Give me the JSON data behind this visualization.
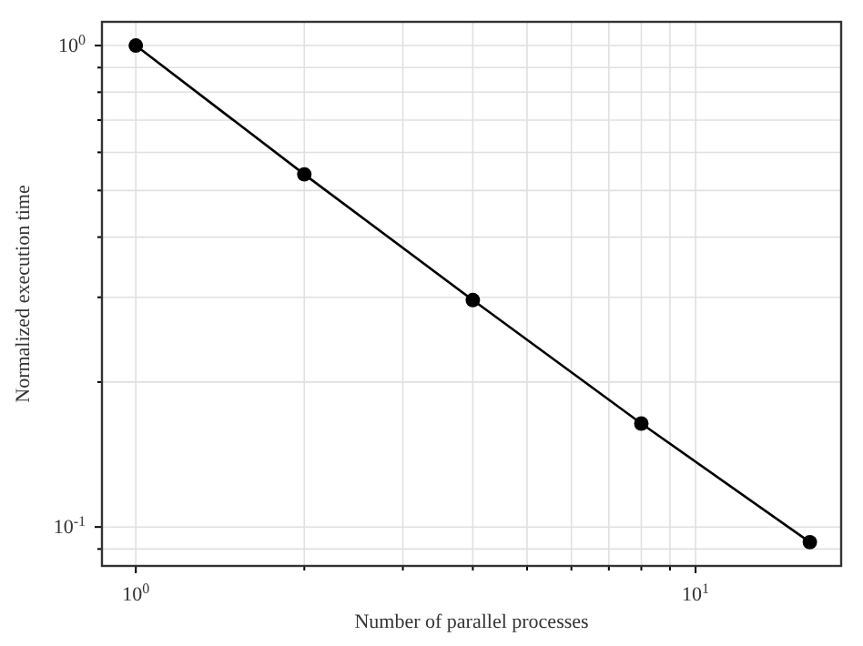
{
  "chart_data": {
    "type": "line",
    "xlabel": "Number of parallel processes",
    "ylabel": "Normalized execution time",
    "x": [
      1,
      2,
      4,
      8,
      16
    ],
    "series": [
      {
        "color": "#000000",
        "values": [
          1,
          0.54,
          0.296,
          0.164,
          0.093
        ]
      }
    ],
    "log": "xy",
    "xlim": [
      0.87,
      18.2
    ],
    "ylim": [
      0.083,
      1.12
    ],
    "xticks": [
      {
        "value": 1,
        "label": "10$^{0}$"
      },
      {
        "value": 2,
        "label": null
      },
      {
        "value": 3,
        "label": null
      },
      {
        "value": 4,
        "label": null
      },
      {
        "value": 5,
        "label": null
      },
      {
        "value": 6,
        "label": null
      },
      {
        "value": 7,
        "label": null
      },
      {
        "value": 8,
        "label": null
      },
      {
        "value": 9,
        "label": null
      },
      {
        "value": 10,
        "label": "10$^{1}$"
      }
    ],
    "yticks": [
      {
        "value": 0.09,
        "label": null
      },
      {
        "value": 0.1,
        "label": "10$^{-1}$"
      },
      {
        "value": 0.2,
        "label": null
      },
      {
        "value": 0.3,
        "label": null
      },
      {
        "value": 0.4,
        "label": null
      },
      {
        "value": 0.5,
        "label": null
      },
      {
        "value": 0.6,
        "label": null
      },
      {
        "value": 0.7,
        "label": null
      },
      {
        "value": 0.8,
        "label": null
      },
      {
        "value": 0.9,
        "label": null
      },
      {
        "value": 1,
        "label": "10$^{0}$"
      }
    ],
    "grid": true,
    "marker": "circle",
    "line_style": "solid"
  }
}
